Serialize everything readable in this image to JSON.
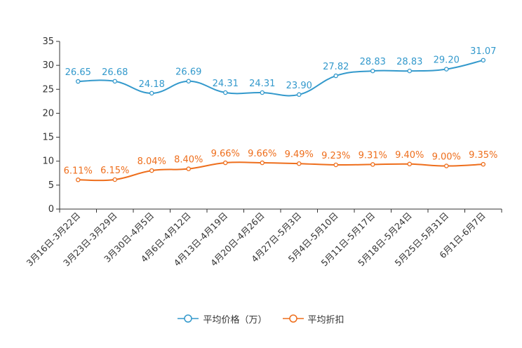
{
  "chart_data": {
    "type": "line",
    "categories": [
      "3月16日-3月22日",
      "3月23日-3月29日",
      "3月30日-4月5日",
      "4月6日-4月12日",
      "4月13日-4月19日",
      "4月20日-4月26日",
      "4月27日-5月3日",
      "5月4日-5月10日",
      "5月11日-5月17日",
      "5月18日-5月24日",
      "5月25日-5月31日",
      "6月1日-6月7日"
    ],
    "series": [
      {
        "name": "平均价格（万）",
        "color": "#3399cc",
        "values": [
          26.65,
          26.68,
          24.18,
          26.69,
          24.31,
          24.31,
          23.9,
          27.82,
          28.83,
          28.83,
          29.2,
          31.07
        ],
        "labels": [
          "26.65",
          "26.68",
          "24.18",
          "26.69",
          "24.31",
          "24.31",
          "23.90",
          "27.82",
          "28.83",
          "28.83",
          "29.20",
          "31.07"
        ]
      },
      {
        "name": "平均折扣",
        "color": "#ee6e1c",
        "values": [
          6.11,
          6.15,
          8.04,
          8.4,
          9.66,
          9.66,
          9.49,
          9.23,
          9.31,
          9.4,
          9.0,
          9.35
        ],
        "labels": [
          "6.11%",
          "6.15%",
          "8.04%",
          "8.40%",
          "9.66%",
          "9.66%",
          "9.49%",
          "9.23%",
          "9.31%",
          "9.40%",
          "9.00%",
          "9.35%"
        ]
      }
    ],
    "y_ticks": [
      "0",
      "5",
      "10",
      "15",
      "20",
      "25",
      "30",
      "35"
    ],
    "ylim": [
      0,
      35
    ],
    "title": "",
    "xlabel": "",
    "ylabel": "",
    "legend_position": "bottom-center",
    "grid": false
  }
}
